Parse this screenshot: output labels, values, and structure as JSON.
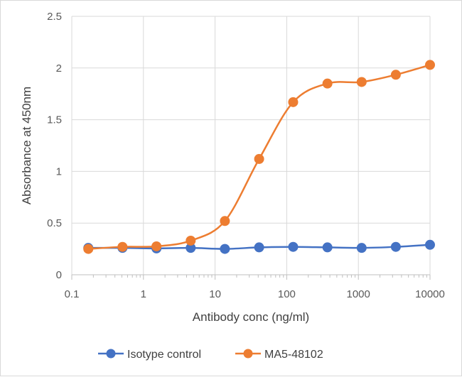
{
  "chart_data": {
    "type": "line",
    "title": "",
    "xlabel": "Antibody conc (ng/ml)",
    "ylabel": "Absorbance at 450nm",
    "x_scale": "log",
    "xlim": [
      0.1,
      10000
    ],
    "ylim": [
      0,
      2.5
    ],
    "x_ticks": [
      0.1,
      1,
      10,
      100,
      1000,
      10000
    ],
    "x_tick_labels": [
      "0.1",
      "1",
      "10",
      "100",
      "1000",
      "10000"
    ],
    "y_ticks": [
      0,
      0.5,
      1,
      1.5,
      2,
      2.5
    ],
    "y_tick_labels": [
      "0",
      "0.5",
      "1",
      "1.5",
      "2",
      "2.5"
    ],
    "grid": true,
    "legend_position": "bottom",
    "x": [
      0.17,
      0.51,
      1.52,
      4.57,
      13.7,
      41.2,
      123,
      370,
      1111,
      3333,
      10000
    ],
    "series": [
      {
        "name": "Isotype control",
        "color": "#4472c4",
        "values": [
          0.26,
          0.26,
          0.255,
          0.26,
          0.25,
          0.265,
          0.27,
          0.265,
          0.26,
          0.27,
          0.29
        ]
      },
      {
        "name": "MA5-48102",
        "color": "#ed7d31",
        "values": [
          0.25,
          0.27,
          0.275,
          0.33,
          0.52,
          1.12,
          1.67,
          1.85,
          1.865,
          1.935,
          2.03
        ]
      }
    ]
  }
}
